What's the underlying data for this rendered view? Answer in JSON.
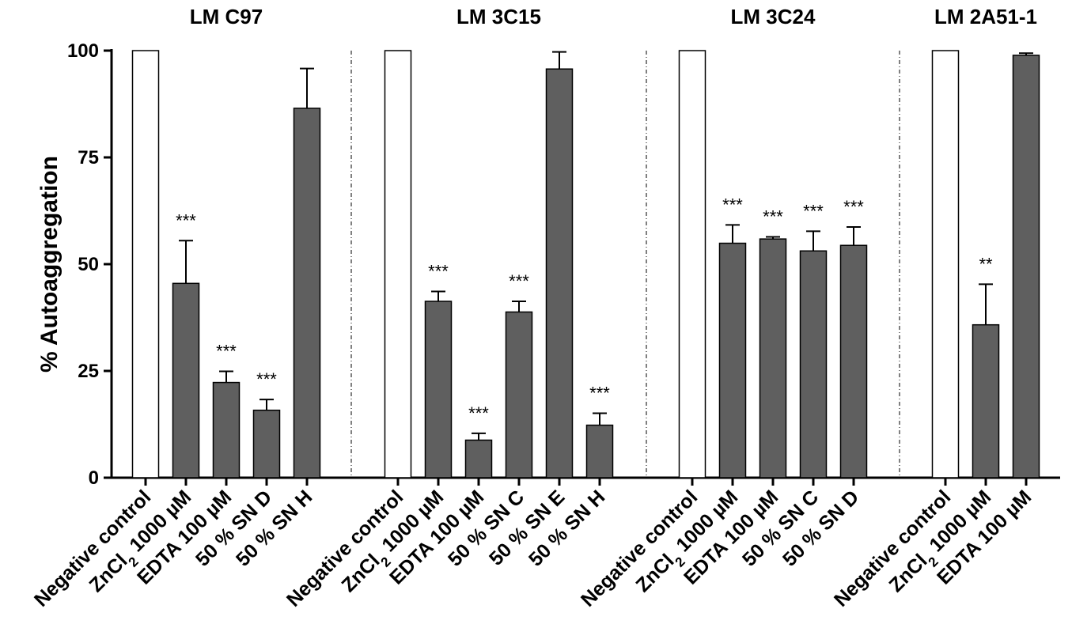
{
  "chart_data": {
    "type": "bar",
    "ylabel": "% Autoaggregation",
    "ylim": [
      0,
      100
    ],
    "yticks": [
      0,
      25,
      50,
      75,
      100
    ],
    "colors": {
      "control": "#ffffff",
      "treatment": "#5f5f5f",
      "outline": "#000000"
    },
    "groups": [
      {
        "title": "LM C97",
        "bars": [
          {
            "label": "Negative control",
            "value": 100,
            "error": 0,
            "sig": "",
            "control": true
          },
          {
            "label": "ZnCl",
            "sub": "2",
            "label_suffix": " 1000 µM",
            "value": 45.5,
            "error": 10,
            "sig": "***"
          },
          {
            "label": "EDTA 100 µM",
            "value": 22.3,
            "error": 2.6,
            "sig": "***"
          },
          {
            "label": "50 % SN D",
            "value": 15.8,
            "error": 2.5,
            "sig": "***"
          },
          {
            "label": "50 % SN H",
            "value": 86.5,
            "error": 9.3,
            "sig": ""
          }
        ]
      },
      {
        "title": "LM 3C15",
        "bars": [
          {
            "label": "Negative control",
            "value": 100,
            "error": 0,
            "sig": "",
            "control": true
          },
          {
            "label": "ZnCl",
            "sub": "2",
            "label_suffix": " 1000 µM",
            "value": 41.3,
            "error": 2.3,
            "sig": "***"
          },
          {
            "label": "EDTA 100 µM",
            "value": 8.8,
            "error": 1.6,
            "sig": "***"
          },
          {
            "label": "50 % SN C",
            "value": 38.8,
            "error": 2.5,
            "sig": "***"
          },
          {
            "label": "50 % SN E",
            "value": 95.7,
            "error": 4,
            "sig": ""
          },
          {
            "label": "50 % SN H",
            "value": 12.3,
            "error": 2.8,
            "sig": "***"
          }
        ]
      },
      {
        "title": "LM 3C24",
        "bars": [
          {
            "label": "Negative control",
            "value": 100,
            "error": 0,
            "sig": "",
            "control": true
          },
          {
            "label": "ZnCl",
            "sub": "2",
            "label_suffix": " 1000 µM",
            "value": 54.9,
            "error": 4.3,
            "sig": "***"
          },
          {
            "label": "EDTA 100 µM",
            "value": 55.9,
            "error": 0.5,
            "sig": "***"
          },
          {
            "label": "50 % SN C",
            "value": 53.1,
            "error": 4.6,
            "sig": "***"
          },
          {
            "label": "50 % SN D",
            "value": 54.4,
            "error": 4.3,
            "sig": "***"
          }
        ]
      },
      {
        "title": "LM 2A51-1",
        "bars": [
          {
            "label": "Negative control",
            "value": 100,
            "error": 0,
            "sig": "",
            "control": true
          },
          {
            "label": "ZnCl",
            "sub": "2",
            "label_suffix": " 1000 µM",
            "value": 35.8,
            "error": 9.5,
            "sig": "**"
          },
          {
            "label": "EDTA 100 µM",
            "value": 98.9,
            "error": 0.5,
            "sig": ""
          }
        ]
      }
    ]
  }
}
